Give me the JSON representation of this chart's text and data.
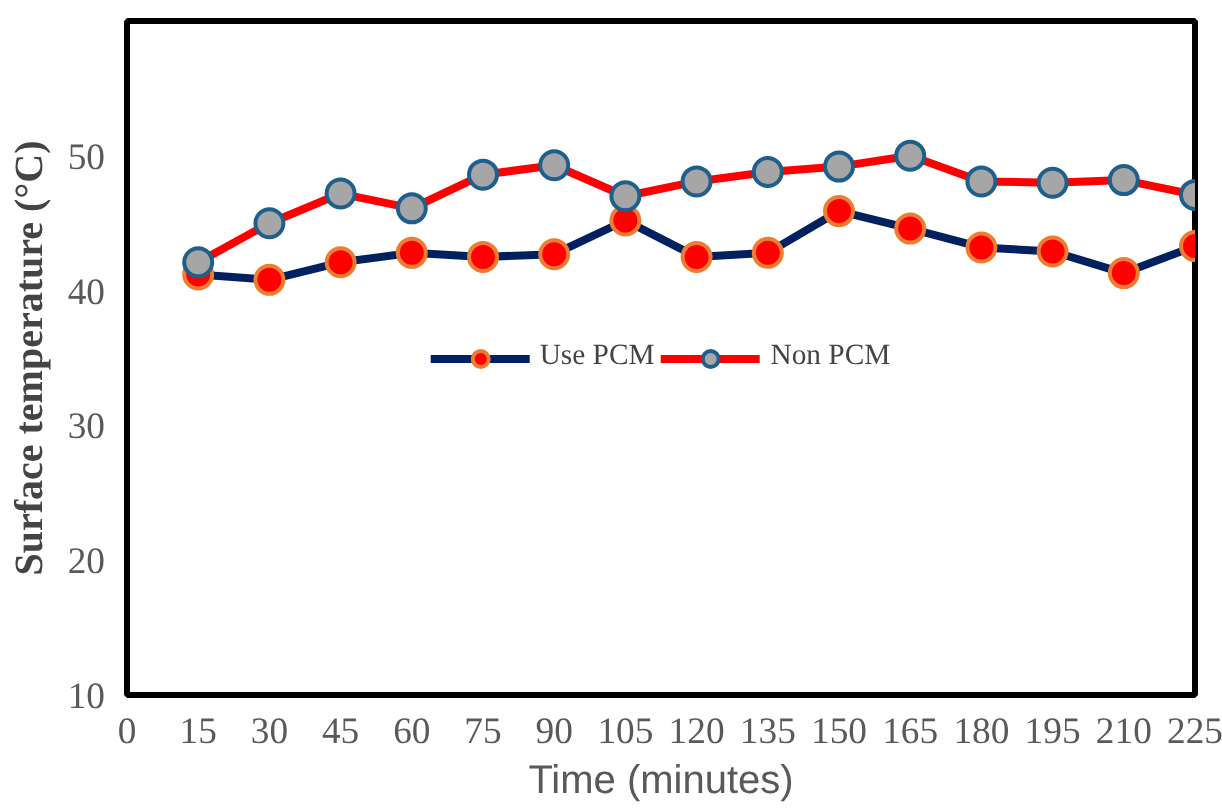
{
  "chart_data": {
    "type": "line",
    "xlabel": "Time (minutes)",
    "ylabel": "Surface temperature (°C)",
    "x": [
      15,
      30,
      45,
      60,
      75,
      90,
      105,
      120,
      135,
      150,
      165,
      180,
      195,
      210,
      225
    ],
    "series": [
      {
        "name": "Use PCM",
        "color": "#002060",
        "values": [
          41.2,
          40.8,
          42.1,
          42.8,
          42.5,
          42.7,
          45.2,
          42.5,
          42.8,
          45.9,
          44.6,
          43.2,
          42.9,
          41.3,
          43.3
        ]
      },
      {
        "name": "Non PCM",
        "color": "#ff0000",
        "values": [
          42.1,
          45.0,
          47.2,
          46.1,
          48.6,
          49.3,
          47.0,
          48.1,
          48.8,
          49.2,
          50.0,
          48.1,
          48.0,
          48.2,
          47.1
        ]
      }
    ],
    "xlim": [
      0,
      225
    ],
    "xticks": [
      0,
      15,
      30,
      45,
      60,
      75,
      90,
      105,
      120,
      135,
      150,
      165,
      180,
      195,
      210,
      225
    ],
    "ylim": [
      10,
      60
    ],
    "yticks": [
      10,
      20,
      30,
      40,
      50
    ],
    "grid": false,
    "legend": "center",
    "marker": "circle",
    "line_style": "solid"
  }
}
